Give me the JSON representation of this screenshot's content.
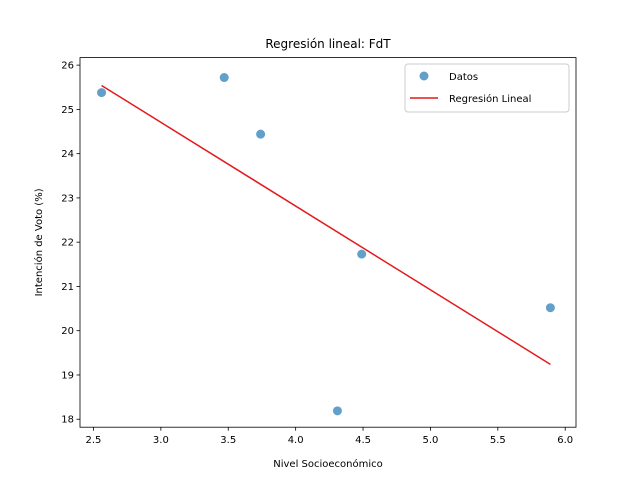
{
  "chart_data": {
    "type": "scatter",
    "title": "Regresión lineal: FdT",
    "xlabel": "Nivel Socioeconómico",
    "ylabel": "Intención de Voto (%)",
    "xlim": [
      2.4,
      6.08
    ],
    "ylim": [
      17.82,
      26.17
    ],
    "xticks": [
      "2.5",
      "3.0",
      "3.5",
      "4.0",
      "4.5",
      "5.0",
      "5.5",
      "6.0"
    ],
    "yticks": [
      "18",
      "19",
      "20",
      "21",
      "22",
      "23",
      "24",
      "25",
      "26"
    ],
    "grid": false,
    "legend_position": "top-right",
    "series": [
      {
        "name": "Datos",
        "kind": "scatter",
        "color": "#1f77b4",
        "points": [
          [
            2.56,
            25.38
          ],
          [
            3.47,
            25.72
          ],
          [
            3.74,
            24.44
          ],
          [
            4.49,
            21.73
          ],
          [
            4.31,
            18.19
          ],
          [
            5.89,
            20.52
          ]
        ]
      },
      {
        "name": "Regresión Lineal",
        "kind": "line",
        "color": "#e41a1c",
        "points": [
          [
            2.56,
            25.54
          ],
          [
            5.89,
            19.24
          ]
        ]
      }
    ]
  }
}
